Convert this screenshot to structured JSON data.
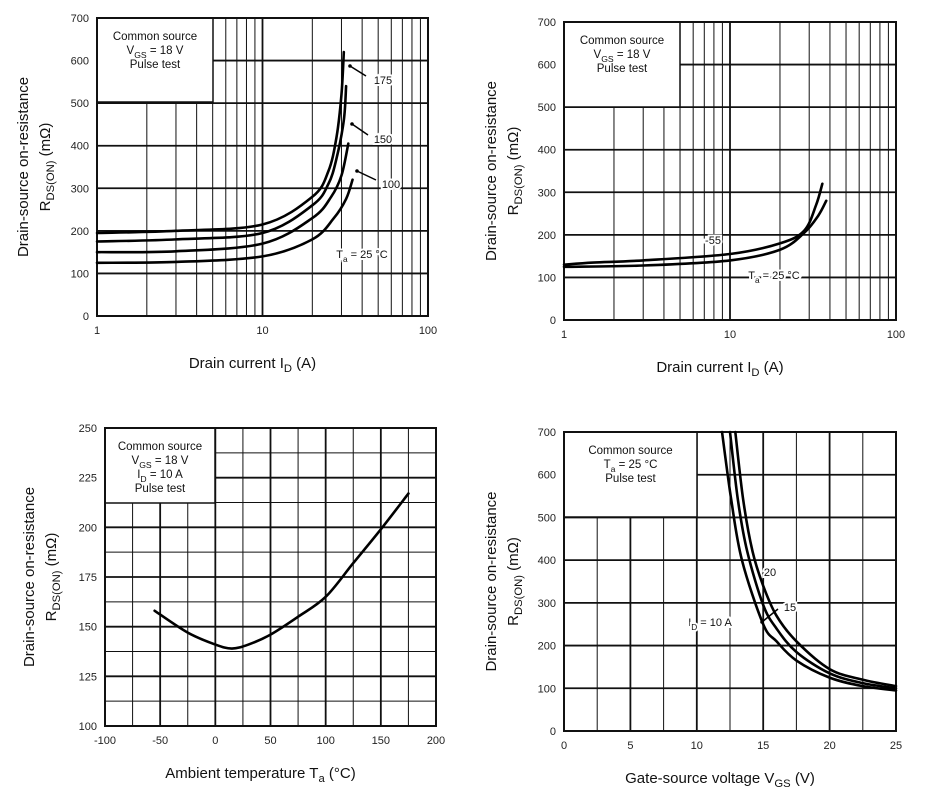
{
  "chart_data": [
    {
      "type": "line",
      "xscale": "log",
      "xlim": [
        1,
        100
      ],
      "ylim": [
        0,
        700
      ],
      "xticks": [
        "1",
        "10",
        "100"
      ],
      "yticks": [
        "0",
        "100",
        "200",
        "300",
        "400",
        "500",
        "600",
        "700"
      ],
      "grid": true,
      "xlabel": {
        "pre": "Drain current  ",
        "sym": "I",
        "sub": "D",
        "post": "  (A)"
      },
      "ylabel": {
        "line1": "Drain-source on-resistance",
        "sym": "R",
        "sub": "DS(ON)",
        "post": "  (mΩ)"
      },
      "info": [
        {
          "pre": "Common source"
        },
        {
          "pre": "V",
          "sub": "GS",
          "post": "  = 18 V"
        },
        {
          "pre": "Pulse test"
        }
      ],
      "series": [
        {
          "label": {
            "pre": "175"
          },
          "x": [
            1,
            3,
            10,
            20,
            25,
            28,
            30,
            31
          ],
          "y": [
            195,
            200,
            215,
            280,
            340,
            420,
            520,
            620
          ]
        },
        {
          "label": {
            "pre": "150"
          },
          "x": [
            1,
            3,
            10,
            20,
            25,
            28,
            31,
            32
          ],
          "y": [
            175,
            180,
            195,
            260,
            310,
            370,
            460,
            540
          ]
        },
        {
          "label": {
            "pre": "100"
          },
          "x": [
            1,
            3,
            10,
            20,
            26,
            30,
            33
          ],
          "y": [
            150,
            152,
            170,
            230,
            280,
            330,
            405
          ]
        },
        {
          "label": {
            "pre": "T",
            "sub": "a",
            "post": " = 25 °C"
          },
          "x": [
            1,
            3,
            10,
            20,
            27,
            32,
            35
          ],
          "y": [
            125,
            127,
            140,
            180,
            230,
            275,
            320
          ]
        }
      ]
    },
    {
      "type": "line",
      "xscale": "log",
      "xlim": [
        1,
        100
      ],
      "ylim": [
        0,
        700
      ],
      "xticks": [
        "1",
        "10",
        "100"
      ],
      "yticks": [
        "0",
        "100",
        "200",
        "300",
        "400",
        "500",
        "600",
        "700"
      ],
      "grid": true,
      "xlabel": {
        "pre": "Drain current  ",
        "sym": "I",
        "sub": "D",
        "post": "  (A)"
      },
      "ylabel": {
        "line1": "Drain-source on-resistance",
        "sym": "R",
        "sub": "DS(ON)",
        "post": "  (mΩ)"
      },
      "info": [
        {
          "pre": "Common source"
        },
        {
          "pre": "V",
          "sub": "GS",
          "post": "  = 18 V"
        },
        {
          "pre": "Pulse test"
        }
      ],
      "series": [
        {
          "label": {
            "pre": "-55"
          },
          "x": [
            1,
            1.5,
            3,
            10,
            20,
            28,
            33,
            36
          ],
          "y": [
            130,
            135,
            140,
            155,
            180,
            210,
            270,
            320
          ]
        },
        {
          "label": {
            "pre": "T",
            "sub": "a",
            "post": " = 25 °C"
          },
          "x": [
            1,
            3,
            10,
            20,
            28,
            34,
            38
          ],
          "y": [
            125,
            128,
            140,
            165,
            205,
            245,
            280
          ]
        }
      ]
    },
    {
      "type": "line",
      "xscale": "linear",
      "xlim": [
        -100,
        200
      ],
      "ylim": [
        100,
        250
      ],
      "xticks": [
        "-100",
        "-50",
        "0",
        "50",
        "100",
        "150",
        "200"
      ],
      "yticks": [
        "100",
        "125",
        "150",
        "175",
        "200",
        "225",
        "250"
      ],
      "grid": true,
      "xlabel": {
        "pre": "Ambient temperature  ",
        "sym": "T",
        "sub": "a",
        "post": "  (°C)"
      },
      "ylabel": {
        "line1": "Drain-source on-resistance",
        "sym": "R",
        "sub": "DS(ON)",
        "post": "  (mΩ)"
      },
      "info": [
        {
          "pre": "Common source"
        },
        {
          "pre": "V",
          "sub": "GS",
          "post": "  = 18 V"
        },
        {
          "pre": "I",
          "sub": "D",
          "post": " = 10 A"
        },
        {
          "pre": "Pulse test"
        }
      ],
      "series": [
        {
          "x": [
            -55,
            -25,
            0,
            15,
            30,
            50,
            75,
            100,
            125,
            150,
            175
          ],
          "y": [
            158,
            147,
            141,
            139,
            141,
            146,
            155,
            165,
            182,
            199,
            217
          ]
        }
      ]
    },
    {
      "type": "line",
      "xscale": "linear",
      "xlim": [
        0,
        25
      ],
      "ylim": [
        0,
        700
      ],
      "xticks": [
        "0",
        "5",
        "10",
        "15",
        "20",
        "25"
      ],
      "yticks": [
        "0",
        "100",
        "200",
        "300",
        "400",
        "500",
        "600",
        "700"
      ],
      "grid": true,
      "xlabel": {
        "pre": "Gate-source voltage  ",
        "sym": "V",
        "sub": "GS",
        "post": "  (V)"
      },
      "ylabel": {
        "line1": "Drain-source on-resistance",
        "sym": "R",
        "sub": "DS(ON)",
        "post": "  (mΩ)"
      },
      "info": [
        {
          "pre": "Common source"
        },
        {
          "pre": "T",
          "sub": "a",
          "post": " = 25 °C"
        },
        {
          "pre": "Pulse test"
        }
      ],
      "series": [
        {
          "label": {
            "pre": "20"
          },
          "x": [
            12.9,
            13.5,
            14.2,
            15,
            16,
            17.5,
            20,
            22.5,
            25
          ],
          "y": [
            700,
            540,
            420,
            340,
            270,
            210,
            145,
            120,
            105
          ]
        },
        {
          "label": {
            "pre": "15"
          },
          "x": [
            12.5,
            13.1,
            13.8,
            15,
            16,
            17.5,
            20,
            22.5,
            25
          ],
          "y": [
            700,
            540,
            420,
            295,
            240,
            185,
            135,
            112,
            100
          ]
        },
        {
          "label": {
            "pre": "I",
            "sub": "D",
            "post": " = 10 A"
          },
          "x": [
            11.9,
            12.6,
            13.4,
            15,
            16,
            17.5,
            20,
            22.5,
            25
          ],
          "y": [
            700,
            540,
            400,
            250,
            210,
            165,
            125,
            105,
            95
          ]
        }
      ]
    }
  ]
}
